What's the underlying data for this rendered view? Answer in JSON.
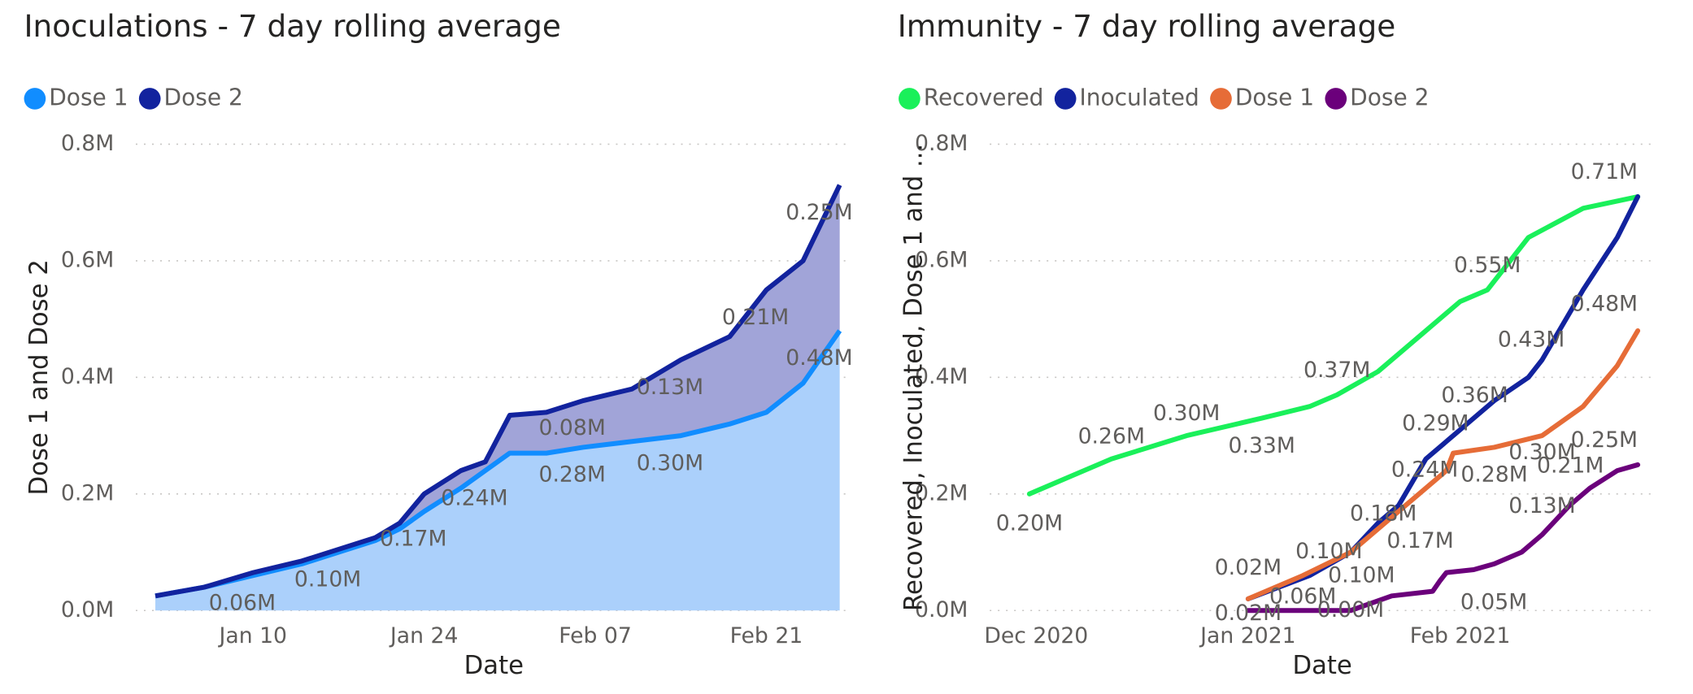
{
  "chart_data": [
    {
      "type": "area",
      "stacked": true,
      "grid": true,
      "title": "Inoculations - 7 day rolling average",
      "x_label": "Date",
      "y_label": "Dose 1 and Dose 2",
      "x": [
        2,
        6,
        10,
        14,
        17,
        20,
        22,
        24,
        27,
        29,
        31,
        34,
        37,
        41,
        45,
        49,
        52,
        55,
        58
      ],
      "xlim": [
        0.4,
        59
      ],
      "xticks": [
        {
          "value": 10,
          "label": "Jan 10"
        },
        {
          "value": 24,
          "label": "Jan 24"
        },
        {
          "value": 38,
          "label": "Feb 07"
        },
        {
          "value": 52,
          "label": "Feb 21"
        }
      ],
      "ylim": [
        0,
        0.8
      ],
      "yticks": [
        {
          "value": 0,
          "label": "0.0M"
        },
        {
          "value": 0.2,
          "label": "0.2M"
        },
        {
          "value": 0.4,
          "label": "0.4M"
        },
        {
          "value": 0.6,
          "label": "0.6M"
        },
        {
          "value": 0.8,
          "label": "0.8M"
        }
      ],
      "series": [
        {
          "name": "Dose 1",
          "color": "#118dff",
          "fill": "#abd0fb",
          "values": [
            0.025,
            0.04,
            0.06,
            0.08,
            0.1,
            0.12,
            0.14,
            0.17,
            0.21,
            0.24,
            0.27,
            0.27,
            0.28,
            0.29,
            0.3,
            0.32,
            0.34,
            0.39,
            0.48
          ],
          "value_labels": [
            null,
            null,
            "0.06M",
            null,
            "0.10M",
            null,
            null,
            "0.17M",
            null,
            "0.24M",
            null,
            null,
            "0.28M",
            null,
            "0.30M",
            null,
            null,
            null,
            "0.48M"
          ]
        },
        {
          "name": "Dose 2",
          "color": "#12239e",
          "fill": "#a1a4d8",
          "values": [
            0,
            0,
            0.005,
            0.005,
            0.005,
            0.005,
            0.01,
            0.03,
            0.03,
            0.015,
            0.065,
            0.07,
            0.08,
            0.09,
            0.13,
            0.15,
            0.21,
            0.21,
            0.25
          ],
          "value_labels": [
            null,
            null,
            null,
            null,
            null,
            null,
            null,
            null,
            null,
            null,
            null,
            null,
            "0.08M",
            null,
            "0.13M",
            null,
            "0.21M",
            null,
            "0.25M"
          ]
        }
      ]
    },
    {
      "type": "line",
      "grid": true,
      "title": "Immunity - 7 day rolling average",
      "x_label": "Date",
      "y_label": "Recovered, Inoculated, Dose 1 and ...",
      "xlim": [
        -6.8,
        90.5
      ],
      "xticks": [
        {
          "value": 0,
          "label": "Dec 2020"
        },
        {
          "value": 31,
          "label": "Jan 2021"
        },
        {
          "value": 62,
          "label": "Feb 2021"
        }
      ],
      "ylim": [
        0,
        0.8
      ],
      "yticks": [
        {
          "value": 0,
          "label": "0.0M"
        },
        {
          "value": 0.2,
          "label": "0.2M"
        },
        {
          "value": 0.4,
          "label": "0.4M"
        },
        {
          "value": 0.6,
          "label": "0.6M"
        },
        {
          "value": 0.8,
          "label": "0.8M"
        }
      ],
      "series": [
        {
          "name": "Recovered",
          "color": "#1af05a",
          "x": [
            -1,
            5,
            11,
            22,
            33,
            40,
            44,
            50,
            56,
            62,
            66,
            72,
            80,
            88
          ],
          "values": [
            0.2,
            0.23,
            0.26,
            0.3,
            0.33,
            0.35,
            0.37,
            0.41,
            0.47,
            0.53,
            0.55,
            0.64,
            0.69,
            0.71
          ],
          "value_labels": [
            "0.20M",
            null,
            "0.26M",
            "0.30M",
            "0.33M",
            null,
            "0.37M",
            null,
            null,
            null,
            "0.55M",
            null,
            null,
            null
          ]
        },
        {
          "name": "Inoculated",
          "color": "#12239e",
          "x": [
            31,
            40,
            46,
            50,
            53,
            57,
            60,
            63,
            67,
            72,
            74,
            80,
            85,
            88
          ],
          "values": [
            0.02,
            0.06,
            0.1,
            0.15,
            0.18,
            0.26,
            0.29,
            0.32,
            0.36,
            0.4,
            0.43,
            0.55,
            0.64,
            0.71
          ],
          "value_labels": [
            "0.02M",
            null,
            "0.10M",
            null,
            "0.18M",
            null,
            "0.29M",
            null,
            "0.36M",
            null,
            "0.43M",
            null,
            null,
            "0.71M"
          ]
        },
        {
          "name": "Dose 1",
          "color": "#e66c37",
          "x": [
            31,
            39,
            46,
            53,
            60,
            61,
            67,
            74,
            80,
            85,
            88
          ],
          "values": [
            0.02,
            0.06,
            0.1,
            0.17,
            0.24,
            0.27,
            0.28,
            0.3,
            0.35,
            0.42,
            0.48
          ],
          "value_labels": [
            "0.02M",
            "0.06M",
            "0.10M",
            "0.17M",
            "0.24M",
            null,
            "0.28M",
            "0.30M",
            null,
            null,
            "0.48M"
          ]
        },
        {
          "name": "Dose 2",
          "color": "#6b007b",
          "x": [
            31,
            46,
            52,
            58,
            59,
            60,
            64,
            67,
            71,
            74,
            78,
            81,
            85,
            88
          ],
          "values": [
            0,
            0.0,
            0.025,
            0.033,
            0.05,
            0.065,
            0.07,
            0.08,
            0.1,
            0.13,
            0.18,
            0.21,
            0.24,
            0.25
          ],
          "value_labels": [
            null,
            "0.00M",
            null,
            null,
            "0.05M",
            null,
            null,
            null,
            null,
            "0.13M",
            null,
            "0.21M",
            null,
            "0.25M"
          ]
        }
      ]
    }
  ]
}
